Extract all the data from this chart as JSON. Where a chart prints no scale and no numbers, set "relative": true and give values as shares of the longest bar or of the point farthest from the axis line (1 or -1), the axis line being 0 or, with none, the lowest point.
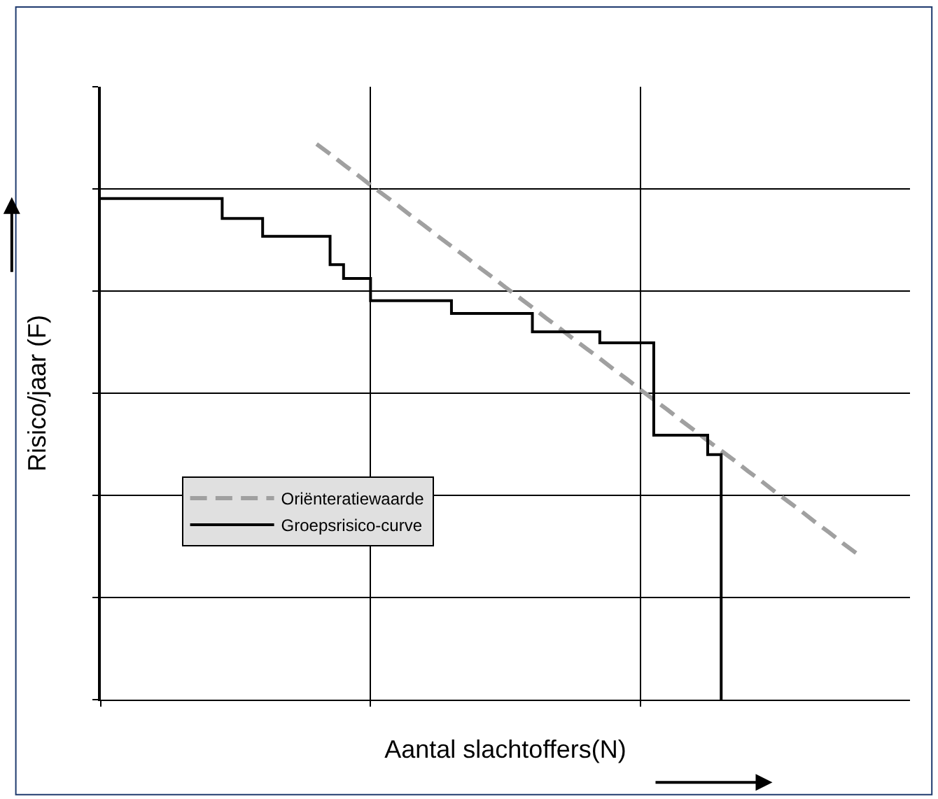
{
  "chart_data": {
    "type": "line",
    "relative": true,
    "xlabel": "Aantal slachtoffers(N)",
    "ylabel": "Risico/jaar (F)",
    "categories": [
      null,
      null,
      null,
      null,
      null,
      null,
      null,
      null,
      null,
      null,
      null,
      null,
      null,
      null,
      null,
      null,
      null,
      null,
      null,
      null,
      null,
      null,
      null,
      null,
      null,
      null,
      null,
      null,
      null,
      null,
      null,
      null,
      null,
      null,
      null,
      null,
      null,
      null,
      null,
      null,
      null,
      null,
      null,
      null,
      null,
      null,
      null,
      null,
      null,
      null,
      null,
      null,
      null,
      null,
      null,
      null,
      null,
      null,
      null,
      null,
      null
    ],
    "grid": true,
    "legend": "bottom left",
    "series": [
      {
        "name": "Oriënteratiewaarde",
        "line_style": "dashed",
        "color": "#a0a0a0",
        "values": [
          null,
          null,
          null,
          null,
          null,
          null,
          null,
          null,
          null,
          null,
          null,
          null,
          null,
          null,
          null,
          null,
          1.0,
          0.982,
          0.963,
          0.945,
          0.926,
          0.908,
          0.89,
          0.871,
          0.853,
          0.834,
          0.816,
          0.798,
          0.779,
          0.761,
          0.742,
          0.724,
          0.706,
          0.687,
          0.669,
          0.65,
          0.632,
          0.614,
          0.595,
          0.577,
          0.558,
          0.54,
          0.522,
          0.503,
          0.485,
          0.466,
          0.448,
          0.43,
          0.411,
          0.393,
          0.374,
          0.356,
          0.338,
          0.319,
          0.301,
          0.282,
          0.264,
          null,
          null,
          null,
          null
        ]
      },
      {
        "name": "Groepsrisico-curve",
        "type": "step",
        "line_style": "solid",
        "color": "#000000",
        "values": [
          0.902,
          0.902,
          0.902,
          0.902,
          0.902,
          0.902,
          0.902,
          0.902,
          0.902,
          0.866,
          0.866,
          0.866,
          0.834,
          0.834,
          0.834,
          0.834,
          0.834,
          0.783,
          0.758,
          0.758,
          0.718,
          0.718,
          0.718,
          0.718,
          0.718,
          0.718,
          0.695,
          0.695,
          0.695,
          0.695,
          0.695,
          0.695,
          0.662,
          0.662,
          0.662,
          0.662,
          0.662,
          0.642,
          0.642,
          0.642,
          0.642,
          0.476,
          0.476,
          0.476,
          0.476,
          0.441,
          0,
          null,
          null,
          null,
          null,
          null,
          null,
          null,
          null,
          null,
          null,
          null,
          null,
          null,
          null
        ]
      }
    ]
  }
}
